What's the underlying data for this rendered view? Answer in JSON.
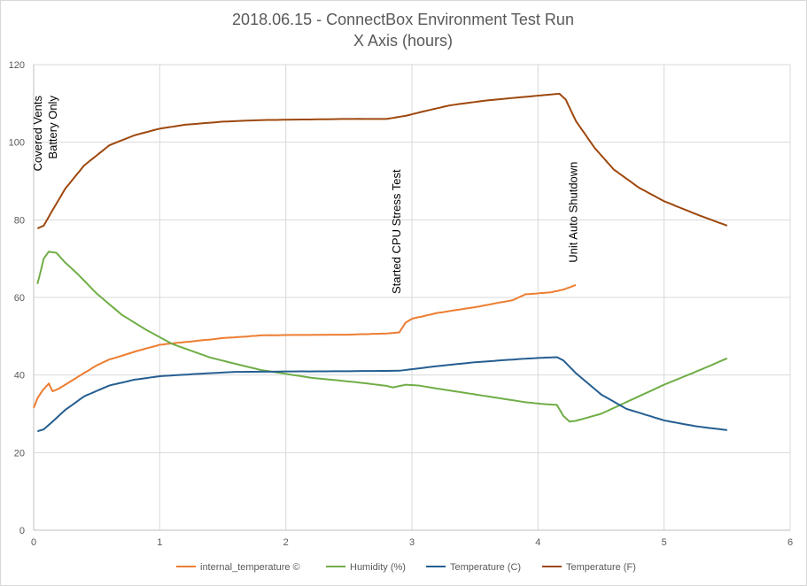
{
  "chart_data": {
    "type": "line",
    "title": "2018.06.15 - ConnectBox Environment Test Run",
    "subtitle": "X Axis (hours)",
    "xlabel": "",
    "ylabel": "",
    "xlim": [
      0,
      6
    ],
    "ylim": [
      0,
      120
    ],
    "x_ticks": [
      0,
      1,
      2,
      3,
      4,
      5,
      6
    ],
    "y_ticks": [
      0,
      20,
      40,
      60,
      80,
      100,
      120
    ],
    "grid": true,
    "legend_position": "bottom",
    "series": [
      {
        "name": "internal_temperature ©",
        "color": "#ED7D31",
        "points": [
          [
            0.0,
            31.5
          ],
          [
            0.03,
            34
          ],
          [
            0.07,
            36
          ],
          [
            0.12,
            37.8
          ],
          [
            0.15,
            35.8
          ],
          [
            0.2,
            36.5
          ],
          [
            0.3,
            38.5
          ],
          [
            0.4,
            40.5
          ],
          [
            0.5,
            42.5
          ],
          [
            0.6,
            44
          ],
          [
            0.8,
            46
          ],
          [
            1.0,
            47.8
          ],
          [
            1.2,
            48.5
          ],
          [
            1.5,
            49.5
          ],
          [
            1.8,
            50.2
          ],
          [
            2.0,
            50.3
          ],
          [
            2.5,
            50.4
          ],
          [
            2.8,
            50.7
          ],
          [
            2.9,
            51
          ],
          [
            2.95,
            53.5
          ],
          [
            3.0,
            54.5
          ],
          [
            3.2,
            56
          ],
          [
            3.5,
            57.5
          ],
          [
            3.8,
            59.3
          ],
          [
            3.9,
            60.8
          ],
          [
            4.1,
            61.3
          ],
          [
            4.2,
            62
          ],
          [
            4.3,
            63.2
          ]
        ]
      },
      {
        "name": "Humidity (%)",
        "color": "#70AD47",
        "points": [
          [
            0.03,
            63.5
          ],
          [
            0.05,
            66
          ],
          [
            0.08,
            70
          ],
          [
            0.12,
            71.8
          ],
          [
            0.18,
            71.5
          ],
          [
            0.25,
            69
          ],
          [
            0.35,
            66
          ],
          [
            0.5,
            61
          ],
          [
            0.7,
            55.5
          ],
          [
            0.9,
            51.5
          ],
          [
            1.1,
            48
          ],
          [
            1.4,
            44.5
          ],
          [
            1.8,
            41.3
          ],
          [
            2.2,
            39.3
          ],
          [
            2.6,
            38
          ],
          [
            2.8,
            37.2
          ],
          [
            2.85,
            36.8
          ],
          [
            2.95,
            37.5
          ],
          [
            3.05,
            37.3
          ],
          [
            3.3,
            36
          ],
          [
            3.6,
            34.5
          ],
          [
            3.9,
            33
          ],
          [
            4.05,
            32.5
          ],
          [
            4.15,
            32.3
          ],
          [
            4.2,
            29.5
          ],
          [
            4.25,
            28
          ],
          [
            4.3,
            28.2
          ],
          [
            4.5,
            30
          ],
          [
            4.7,
            33
          ],
          [
            5.0,
            37.5
          ],
          [
            5.3,
            41.5
          ],
          [
            5.5,
            44.3
          ]
        ]
      },
      {
        "name": "Temperature (C)",
        "color": "#255E91",
        "points": [
          [
            0.03,
            25.5
          ],
          [
            0.08,
            26
          ],
          [
            0.15,
            28
          ],
          [
            0.25,
            31
          ],
          [
            0.4,
            34.5
          ],
          [
            0.6,
            37.3
          ],
          [
            0.8,
            38.8
          ],
          [
            1.0,
            39.7
          ],
          [
            1.3,
            40.3
          ],
          [
            1.6,
            40.8
          ],
          [
            2.0,
            40.9
          ],
          [
            2.5,
            41
          ],
          [
            2.9,
            41.1
          ],
          [
            3.2,
            42.3
          ],
          [
            3.5,
            43.3
          ],
          [
            3.8,
            44
          ],
          [
            4.0,
            44.4
          ],
          [
            4.15,
            44.6
          ],
          [
            4.2,
            43.8
          ],
          [
            4.3,
            40.5
          ],
          [
            4.5,
            35
          ],
          [
            4.7,
            31.3
          ],
          [
            5.0,
            28.3
          ],
          [
            5.25,
            26.8
          ],
          [
            5.5,
            25.8
          ]
        ]
      },
      {
        "name": "Temperature (F)",
        "color": "#9E480E",
        "points": [
          [
            0.03,
            77.8
          ],
          [
            0.08,
            78.5
          ],
          [
            0.15,
            82.5
          ],
          [
            0.25,
            88
          ],
          [
            0.4,
            94
          ],
          [
            0.6,
            99.2
          ],
          [
            0.8,
            101.8
          ],
          [
            1.0,
            103.5
          ],
          [
            1.2,
            104.5
          ],
          [
            1.5,
            105.3
          ],
          [
            1.8,
            105.7
          ],
          [
            2.0,
            105.8
          ],
          [
            2.5,
            106
          ],
          [
            2.8,
            106
          ],
          [
            2.95,
            106.8
          ],
          [
            3.1,
            108
          ],
          [
            3.3,
            109.5
          ],
          [
            3.6,
            110.8
          ],
          [
            3.9,
            111.7
          ],
          [
            4.1,
            112.3
          ],
          [
            4.17,
            112.5
          ],
          [
            4.22,
            111
          ],
          [
            4.3,
            105.5
          ],
          [
            4.45,
            98.5
          ],
          [
            4.6,
            93
          ],
          [
            4.8,
            88.3
          ],
          [
            5.0,
            84.8
          ],
          [
            5.25,
            81.5
          ],
          [
            5.5,
            78.5
          ]
        ]
      }
    ],
    "annotations": [
      {
        "lines": [
          "Covered Vents",
          "Battery Only"
        ],
        "x": 0.12,
        "y_top": 112
      },
      {
        "lines": [
          "Started CPU Stress Test"
        ],
        "x": 2.91,
        "y_top": 93
      },
      {
        "lines": [
          "Unit Auto Shutdown"
        ],
        "x": 4.31,
        "y_top": 95
      }
    ]
  }
}
